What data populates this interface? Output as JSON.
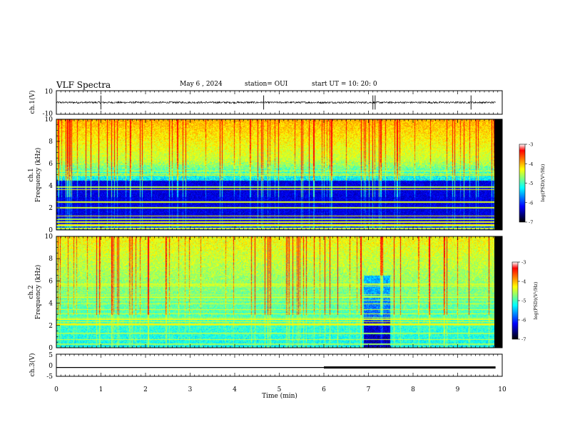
{
  "header": {
    "title": "VLF Spectra",
    "date": "May 6 , 2024",
    "station": "station= OUI",
    "start": "start UT = 10: 20: 0"
  },
  "colors": {
    "waveform": "#000000",
    "colormap": [
      "#000000",
      "#00007f",
      "#0000ff",
      "#007fff",
      "#00ffff",
      "#7fff7f",
      "#ffff00",
      "#ff7f00",
      "#ff0000",
      "#ffffff"
    ]
  },
  "chart_data": [
    {
      "type": "line",
      "panel": "ch.1 waveform",
      "ylabel": "ch.1(V)",
      "ylim": [
        -10,
        10
      ],
      "yticks": [
        "10",
        "-10"
      ],
      "xlim": [
        0,
        10
      ],
      "baseline": 0,
      "spikes_at_min": [
        1.0,
        4.65,
        7.1,
        7.15,
        9.3
      ]
    },
    {
      "type": "heatmap",
      "panel": "ch.1 spectrogram",
      "ylabel": "ch.1\nFrequency (kHz)",
      "ylim": [
        0,
        10
      ],
      "yticks": [
        "0",
        "2",
        "4",
        "6",
        "8",
        "10"
      ],
      "xlim": [
        0,
        9.85
      ],
      "colorbar": {
        "label": "log(PSD)(V²/Hz)",
        "range": [
          -7,
          -3
        ],
        "ticks": [
          "-3",
          "-4",
          "-5",
          "-6",
          "-7"
        ]
      }
    },
    {
      "type": "heatmap",
      "panel": "ch.2 spectrogram",
      "ylabel": "ch.2\nFrequency (kHz)",
      "ylim": [
        0,
        10
      ],
      "yticks": [
        "0",
        "2",
        "4",
        "6",
        "8",
        "10"
      ],
      "xlim": [
        0,
        9.85
      ],
      "colorbar": {
        "label": "log(PSD)(V²/Hz)",
        "range": [
          -7,
          -3
        ],
        "ticks": [
          "-3",
          "-4",
          "-5",
          "-6",
          "-7"
        ]
      }
    },
    {
      "type": "line",
      "panel": "ch.3 signal",
      "ylabel": "ch.3(V)",
      "ylim": [
        -5,
        5
      ],
      "yticks": [
        "5",
        "0",
        "-5"
      ],
      "xlim": [
        0,
        10
      ],
      "x": [
        0,
        6.0,
        6.0,
        9.85
      ],
      "y": [
        -1.0,
        -1.0,
        -1.0,
        -1.0
      ],
      "thick_from_min": 6.0
    }
  ],
  "xaxis": {
    "label": "Time (min)",
    "ticks": [
      "0",
      "1",
      "2",
      "3",
      "4",
      "5",
      "6",
      "7",
      "8",
      "9",
      "10"
    ],
    "range": [
      0,
      10
    ]
  }
}
